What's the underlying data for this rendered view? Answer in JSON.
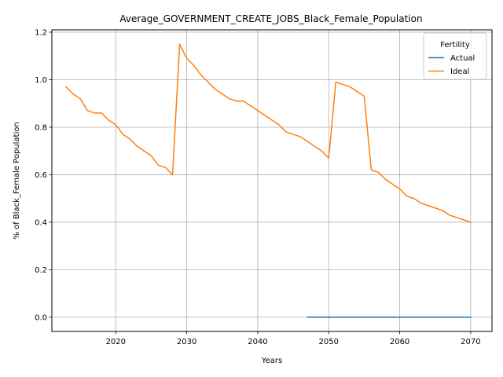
{
  "chart_data": {
    "type": "line",
    "title": "Average_GOVERNMENT_CREATE_JOBS_Black_Female_Population",
    "xlabel": "Years",
    "ylabel": "% of Black_Female Population",
    "xlim": [
      2011,
      2073
    ],
    "ylim": [
      -0.06,
      1.21
    ],
    "xticks": [
      2020,
      2030,
      2040,
      2050,
      2060,
      2070
    ],
    "yticks": [
      0.0,
      0.2,
      0.4,
      0.6,
      0.8,
      1.0,
      1.2
    ],
    "xtick_labels": [
      "2020",
      "2030",
      "2040",
      "2050",
      "2060",
      "2070"
    ],
    "ytick_labels": [
      "0.0",
      "0.2",
      "0.4",
      "0.6",
      "0.8",
      "1.0",
      "1.2"
    ],
    "grid": true,
    "legend": {
      "title": "Fertility",
      "placement": "top-right"
    },
    "series": [
      {
        "name": "Actual",
        "color": "#1f77b4",
        "x": [
          2047,
          2048,
          2049,
          2050,
          2051,
          2052,
          2053,
          2054,
          2055,
          2056,
          2057,
          2058,
          2059,
          2060,
          2061,
          2062,
          2063,
          2064,
          2065,
          2066,
          2067,
          2068,
          2069,
          2070
        ],
        "values": [
          0,
          0,
          0,
          0,
          0,
          0,
          0,
          0,
          0,
          0,
          0,
          0,
          0,
          0,
          0,
          0,
          0,
          0,
          0,
          0,
          0,
          0,
          0,
          0
        ]
      },
      {
        "name": "Ideal",
        "color": "#ff7f0e",
        "x": [
          2013,
          2014,
          2015,
          2016,
          2017,
          2018,
          2019,
          2020,
          2021,
          2022,
          2023,
          2024,
          2025,
          2026,
          2027,
          2028,
          2029,
          2030,
          2031,
          2032,
          2033,
          2034,
          2035,
          2036,
          2037,
          2038,
          2039,
          2040,
          2041,
          2042,
          2043,
          2044,
          2045,
          2046,
          2047,
          2048,
          2049,
          2050,
          2051,
          2052,
          2053,
          2054,
          2055,
          2056,
          2057,
          2058,
          2059,
          2060,
          2061,
          2062,
          2063,
          2064,
          2065,
          2066,
          2067,
          2068,
          2069,
          2070
        ],
        "values": [
          0.97,
          0.94,
          0.92,
          0.87,
          0.86,
          0.86,
          0.83,
          0.81,
          0.77,
          0.75,
          0.72,
          0.7,
          0.68,
          0.64,
          0.63,
          0.6,
          1.15,
          1.09,
          1.06,
          1.02,
          0.99,
          0.96,
          0.94,
          0.92,
          0.91,
          0.91,
          0.89,
          0.87,
          0.85,
          0.83,
          0.81,
          0.78,
          0.77,
          0.76,
          0.74,
          0.72,
          0.7,
          0.67,
          0.99,
          0.98,
          0.97,
          0.95,
          0.93,
          0.62,
          0.61,
          0.58,
          0.56,
          0.54,
          0.51,
          0.5,
          0.48,
          0.47,
          0.46,
          0.45,
          0.43,
          0.42,
          0.41,
          0.4
        ]
      }
    ]
  }
}
